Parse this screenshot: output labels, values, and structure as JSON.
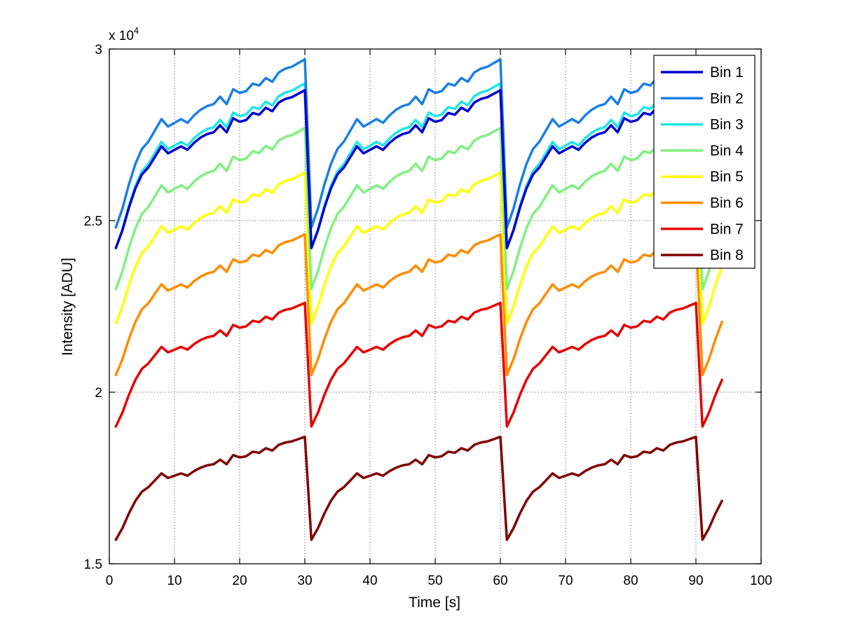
{
  "chart_data": {
    "type": "line",
    "title": "",
    "xlabel": "Time [s]",
    "ylabel": "Intensity [ADU]",
    "y_exponent_label": "x 10",
    "y_exponent_power": "4",
    "xlim": [
      0,
      100
    ],
    "ylim": [
      15000,
      30000
    ],
    "xticks": [
      "0",
      "10",
      "20",
      "30",
      "40",
      "50",
      "60",
      "70",
      "80",
      "90",
      "100"
    ],
    "yticks": [
      "1.5",
      "2",
      "2.5",
      "3"
    ],
    "grid": true,
    "legend_position": "top-right",
    "cycle_length_s": 30,
    "total_points": 94,
    "cycle_shape": [
      0,
      0.1,
      0.23,
      0.34,
      0.42,
      0.46,
      0.52,
      0.58,
      0.54,
      0.56,
      0.58,
      0.56,
      0.6,
      0.63,
      0.65,
      0.66,
      0.7,
      0.66,
      0.74,
      0.72,
      0.73,
      0.77,
      0.76,
      0.8,
      0.78,
      0.83,
      0.85,
      0.86,
      0.88,
      0.9
    ],
    "series": [
      {
        "name": "Bin 1",
        "color": "#0000cd",
        "start": 24200,
        "peak": 28800
      },
      {
        "name": "Bin 2",
        "color": "#1a7fe6",
        "start": 24800,
        "peak": 29700
      },
      {
        "name": "Bin 3",
        "color": "#1ee6e6",
        "start": 24200,
        "peak": 29000
      },
      {
        "name": "Bin 4",
        "color": "#80f080",
        "start": 23000,
        "peak": 27700
      },
      {
        "name": "Bin 5",
        "color": "#ffff00",
        "start": 22000,
        "peak": 26400
      },
      {
        "name": "Bin 6",
        "color": "#ff8c00",
        "start": 20500,
        "peak": 24600
      },
      {
        "name": "Bin 7",
        "color": "#e60000",
        "start": 19000,
        "peak": 22600
      },
      {
        "name": "Bin 8",
        "color": "#800000",
        "start": 15700,
        "peak": 18700
      }
    ]
  }
}
